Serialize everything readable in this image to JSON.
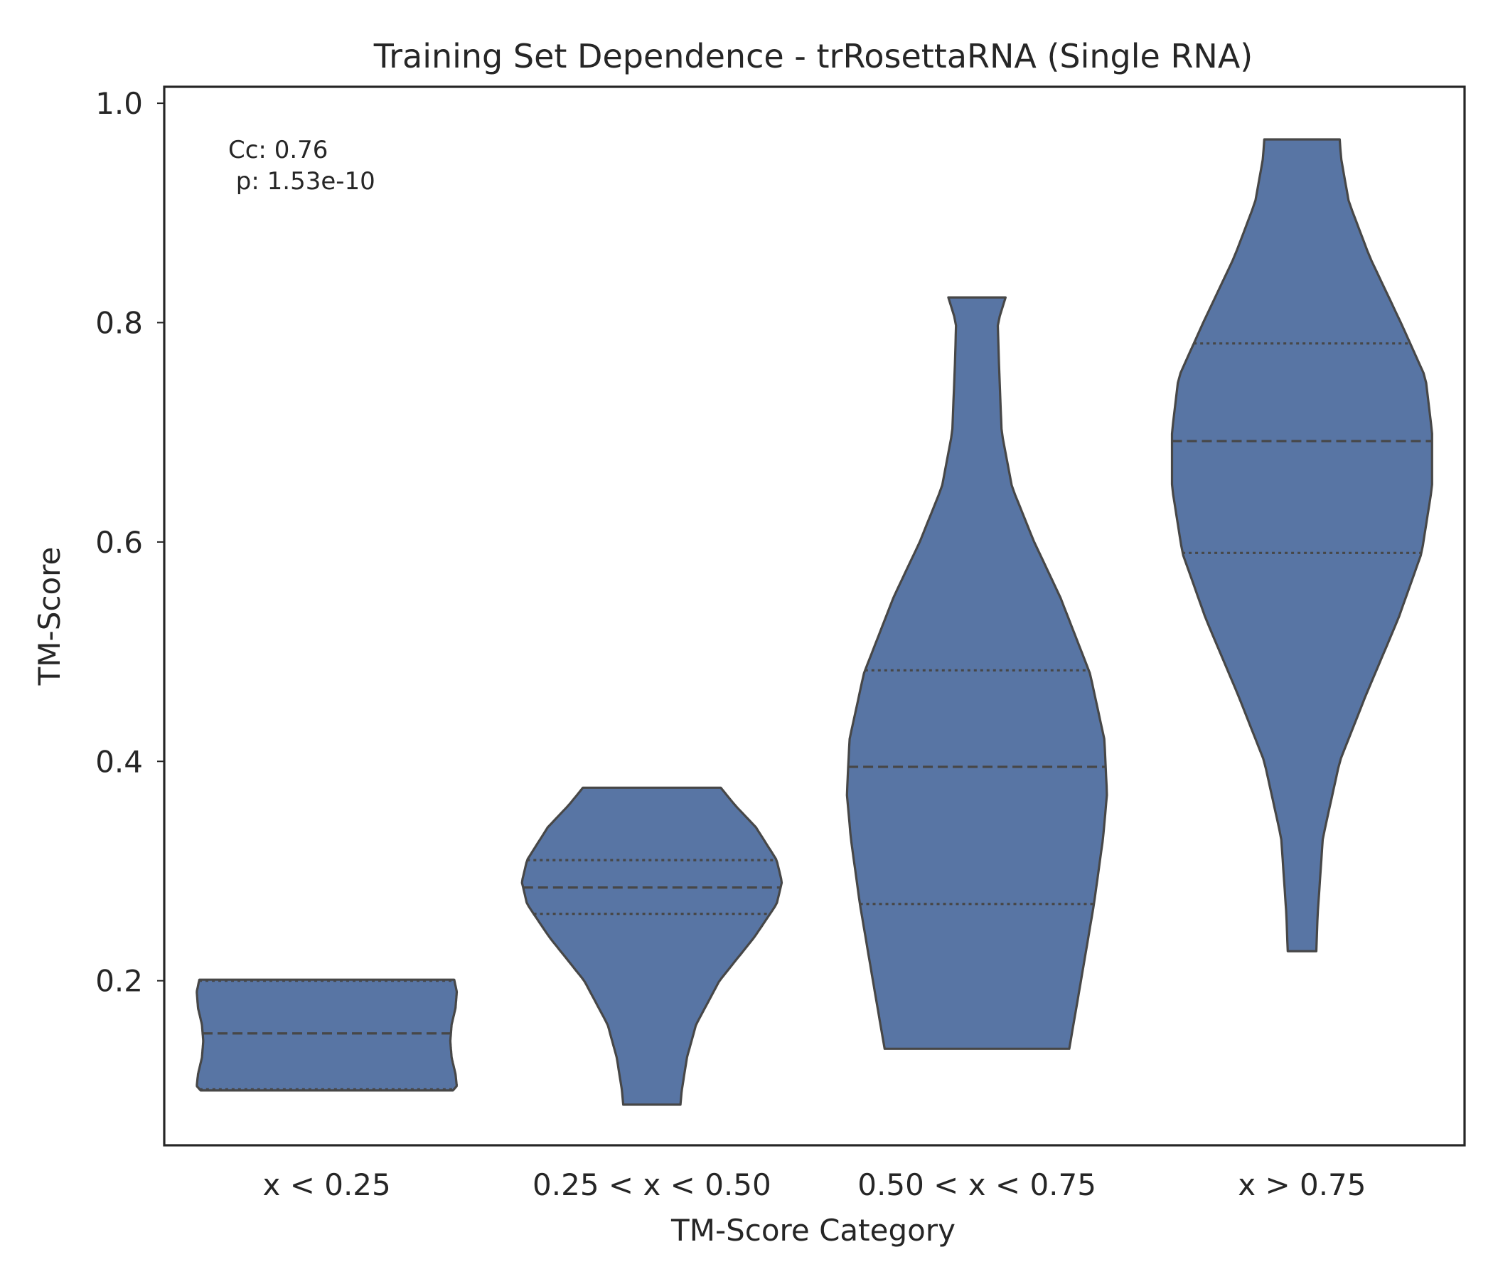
{
  "chart_data": {
    "type": "violin",
    "title": "Training Set Dependence - trRosettaRNA (Single RNA)",
    "xlabel": "TM-Score Category",
    "ylabel": "TM-Score",
    "categories": [
      "x < 0.25",
      "0.25 < x < 0.50",
      "0.50 < x < 0.75",
      "x > 0.75"
    ],
    "ylim": [
      0.05,
      1.015
    ],
    "yticks": [
      0.2,
      0.4,
      0.6,
      0.8,
      1.0
    ],
    "ytick_labels": [
      "0.2",
      "0.4",
      "0.6",
      "0.8",
      "1.0"
    ],
    "grid": false,
    "annotation": {
      "line1": "Cc: 0.76",
      "line2": " p: 1.53e-10"
    },
    "violins": [
      {
        "category": "x < 0.25",
        "min": 0.1,
        "max": 0.201,
        "q1": 0.101,
        "median": 0.152,
        "q3": 0.2,
        "profile": [
          [
            0.1,
            0.97
          ],
          [
            0.104,
            1.0
          ],
          [
            0.115,
            0.99
          ],
          [
            0.13,
            0.96
          ],
          [
            0.145,
            0.95
          ],
          [
            0.16,
            0.96
          ],
          [
            0.175,
            0.99
          ],
          [
            0.19,
            1.0
          ],
          [
            0.201,
            0.98
          ]
        ]
      },
      {
        "category": "0.25 < x < 0.50",
        "min": 0.087,
        "max": 0.376,
        "q1": 0.261,
        "median": 0.285,
        "q3": 0.31,
        "profile": [
          [
            0.087,
            0.22
          ],
          [
            0.1,
            0.23
          ],
          [
            0.13,
            0.27
          ],
          [
            0.16,
            0.34
          ],
          [
            0.2,
            0.52
          ],
          [
            0.24,
            0.79
          ],
          [
            0.27,
            0.96
          ],
          [
            0.29,
            1.0
          ],
          [
            0.31,
            0.96
          ],
          [
            0.34,
            0.8
          ],
          [
            0.36,
            0.64
          ],
          [
            0.376,
            0.53
          ]
        ]
      },
      {
        "category": "0.50 < x < 0.75",
        "min": 0.138,
        "max": 0.823,
        "q1": 0.27,
        "median": 0.395,
        "q3": 0.483,
        "profile": [
          [
            0.138,
            0.71
          ],
          [
            0.2,
            0.8
          ],
          [
            0.27,
            0.9
          ],
          [
            0.33,
            0.97
          ],
          [
            0.37,
            1.0
          ],
          [
            0.42,
            0.98
          ],
          [
            0.48,
            0.87
          ],
          [
            0.55,
            0.64
          ],
          [
            0.6,
            0.44
          ],
          [
            0.65,
            0.27
          ],
          [
            0.7,
            0.19
          ],
          [
            0.76,
            0.17
          ],
          [
            0.8,
            0.16
          ],
          [
            0.823,
            0.22
          ]
        ]
      },
      {
        "category": "x > 0.75",
        "min": 0.227,
        "max": 0.967,
        "q1": 0.59,
        "median": 0.692,
        "q3": 0.781,
        "profile": [
          [
            0.227,
            0.11
          ],
          [
            0.26,
            0.12
          ],
          [
            0.33,
            0.16
          ],
          [
            0.4,
            0.29
          ],
          [
            0.46,
            0.49
          ],
          [
            0.53,
            0.74
          ],
          [
            0.59,
            0.92
          ],
          [
            0.65,
            1.0
          ],
          [
            0.7,
            1.0
          ],
          [
            0.75,
            0.95
          ],
          [
            0.8,
            0.76
          ],
          [
            0.86,
            0.52
          ],
          [
            0.91,
            0.36
          ],
          [
            0.95,
            0.3
          ],
          [
            0.967,
            0.29
          ]
        ]
      }
    ],
    "colors": {
      "violin_fill": "#5875a4",
      "violin_edge": "#474747",
      "axis": "#262626",
      "text": "#262626"
    }
  }
}
